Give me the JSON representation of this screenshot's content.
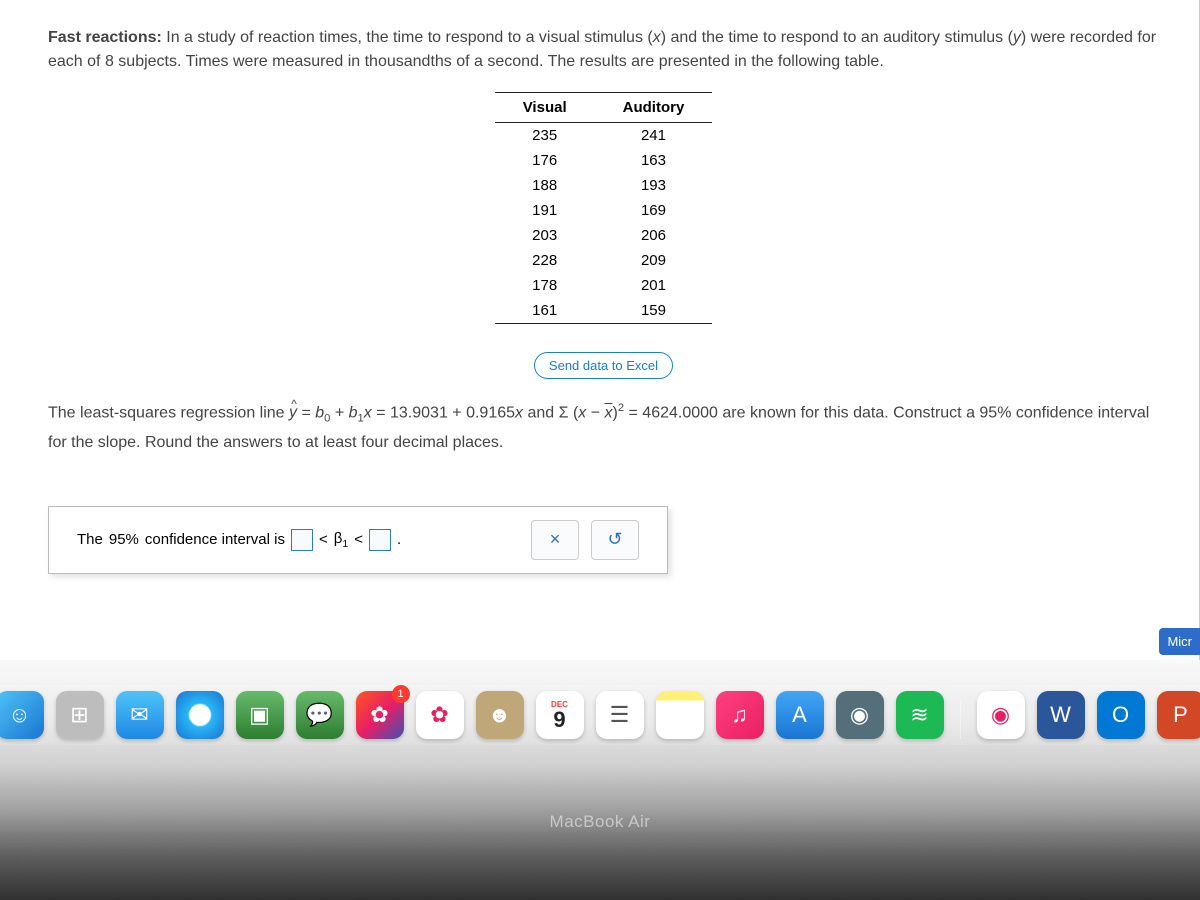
{
  "problem": {
    "bold_lead": "Fast reactions:",
    "intro_1": "In a study of reaction times, the time to respond to a visual stimulus (",
    "var_x": "x",
    "intro_2": ") and the time to respond to an auditory stimulus (",
    "var_y": "y",
    "intro_3": ") were recorded for each of ",
    "subjects": "8",
    "intro_4": " subjects. Times were measured in thousandths of a second. The results are presented in the following table."
  },
  "table": {
    "columns": [
      "Visual",
      "Auditory"
    ],
    "rows": [
      [
        235,
        241
      ],
      [
        176,
        163
      ],
      [
        188,
        193
      ],
      [
        191,
        169
      ],
      [
        203,
        206
      ],
      [
        228,
        209
      ],
      [
        178,
        201
      ],
      [
        161,
        159
      ]
    ]
  },
  "send_excel_label": "Send data to Excel",
  "regression": {
    "lead": "The least-squares regression line ",
    "b0": "13.9031",
    "b1": "0.9165",
    "ssx": "4624.0000",
    "mid": " are known for this data. Construct a ",
    "ci": "95%",
    "trail": " confidence interval for the slope. Round the answers to at least four decimal places."
  },
  "answer": {
    "lead": "The ",
    "ci": "95%",
    "mid": " confidence interval is ",
    "beta": "β",
    "sub": "1"
  },
  "toolbar": {
    "clear": "×",
    "reset": "↺"
  },
  "micr_tab": "Micr",
  "dock": {
    "badge_1": "1",
    "cal_month": "DEC",
    "cal_day": "9",
    "items": [
      {
        "name": "finder-icon",
        "bg": "linear-gradient(135deg,#4fc3f7,#1976d2)",
        "glyph": "☺"
      },
      {
        "name": "launchpad-icon",
        "bg": "#bdbdbd",
        "glyph": "⊞"
      },
      {
        "name": "mail-icon",
        "bg": "linear-gradient(180deg,#4fc3f7,#1e88e5)",
        "glyph": "✉"
      },
      {
        "name": "safari-icon",
        "bg": "radial-gradient(circle,#fff 30%,#29b6f6 35%,#1976d2 100%)",
        "glyph": "✦"
      },
      {
        "name": "facetime-icon",
        "bg": "linear-gradient(180deg,#66bb6a,#2e7d32)",
        "glyph": "▣"
      },
      {
        "name": "messages-icon",
        "bg": "linear-gradient(180deg,#66bb6a,#2e7d32)",
        "glyph": "💬"
      },
      {
        "name": "clips-icon",
        "bg": "linear-gradient(135deg,#ff5722,#e91e63,#3f51b5)",
        "glyph": "✿"
      },
      {
        "name": "photos-icon",
        "bg": "#fff",
        "glyph": "✿"
      },
      {
        "name": "contacts-icon",
        "bg": "#bfa77a",
        "glyph": "☻"
      },
      {
        "name": "reminders-icon",
        "bg": "#fff",
        "glyph": "☰"
      },
      {
        "name": "notes-icon",
        "bg": "linear-gradient(180deg,#fff176 20%,#fff 20%)",
        "glyph": ""
      },
      {
        "name": "music-icon",
        "bg": "linear-gradient(135deg,#ff4081,#e91e63)",
        "glyph": "♫"
      },
      {
        "name": "appstore-icon",
        "bg": "linear-gradient(180deg,#42a5f5,#1976d2)",
        "glyph": "A"
      },
      {
        "name": "preview-icon",
        "bg": "#546e7a",
        "glyph": "◉"
      },
      {
        "name": "spotify-icon",
        "bg": "#1db954",
        "glyph": "≋"
      },
      {
        "name": "chrome-icon",
        "bg": "#fff",
        "glyph": "◉"
      },
      {
        "name": "word-icon",
        "bg": "#2b579a",
        "glyph": "W"
      },
      {
        "name": "outlook-icon",
        "bg": "#0078d4",
        "glyph": "O"
      },
      {
        "name": "powerpoint-icon",
        "bg": "#d24726",
        "glyph": "P"
      }
    ]
  },
  "macbook_label": "MacBook Air"
}
